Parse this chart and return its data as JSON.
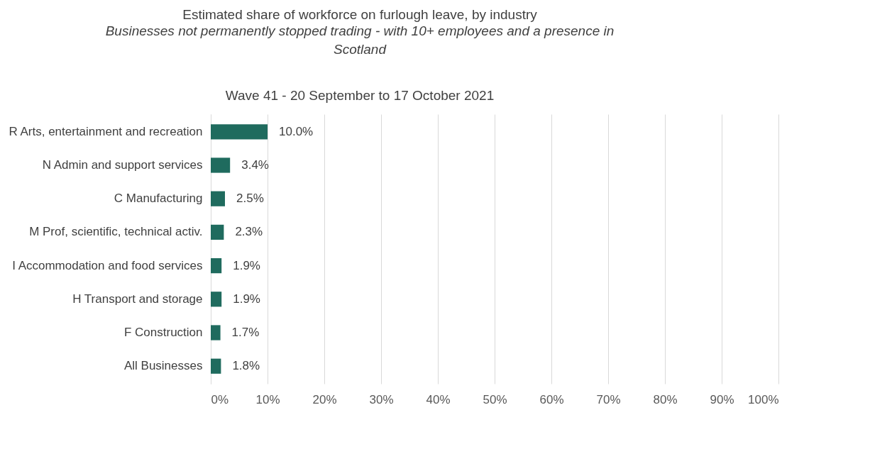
{
  "chart_data": {
    "type": "bar",
    "orientation": "horizontal",
    "title": "Estimated share of workforce on furlough leave, by industry",
    "subtitle": "Businesses not permanently stopped trading -  with 10+ employees and a presence in Scotland",
    "annotations": [
      "Wave 41 - 20 September to 17 October 2021"
    ],
    "categories": [
      "R Arts, entertainment and recreation",
      "N Admin and support services",
      "C Manufacturing",
      "M Prof, scientific, technical activ.",
      "I Accommodation and food services",
      "H Transport and storage",
      "F Construction",
      "All Businesses"
    ],
    "values": [
      10.0,
      3.4,
      2.5,
      2.3,
      1.9,
      1.9,
      1.7,
      1.8
    ],
    "value_labels": [
      "10.0%",
      "3.4%",
      "2.5%",
      "2.3%",
      "1.9%",
      "1.9%",
      "1.7%",
      "1.8%"
    ],
    "color": "#1f6b5e",
    "xlim": [
      0,
      100
    ],
    "xticks": [
      {
        "value": 0,
        "label": "0%"
      },
      {
        "value": 10,
        "label": "10%"
      },
      {
        "value": 20,
        "label": "20%"
      },
      {
        "value": 30,
        "label": "30%"
      },
      {
        "value": 40,
        "label": "40%"
      },
      {
        "value": 50,
        "label": "50%"
      },
      {
        "value": 60,
        "label": "60%"
      },
      {
        "value": 70,
        "label": "70%"
      },
      {
        "value": 80,
        "label": "80%"
      },
      {
        "value": 90,
        "label": "90%"
      },
      {
        "value": 100,
        "label": "100%"
      }
    ],
    "grid": "x"
  }
}
